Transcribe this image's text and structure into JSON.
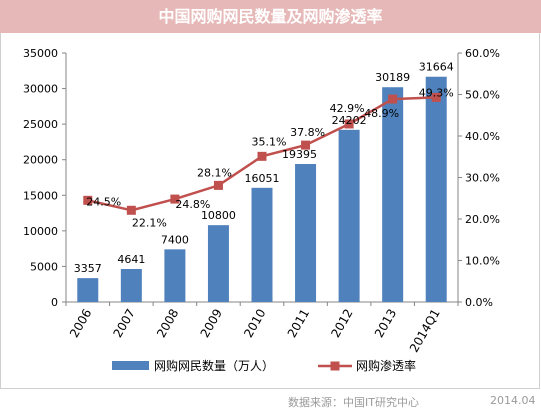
{
  "title": "中国网购网民数量及网购渗透率",
  "source": "数据来源：中国IT研究中心",
  "date": "2014.04",
  "colors": {
    "title_bg": "#e6b9b8",
    "bar": "#4f81bd",
    "line": "#c0504d"
  },
  "chart_data": {
    "type": "bar",
    "categories": [
      "2006",
      "2007",
      "2008",
      "2009",
      "2010",
      "2011",
      "2012",
      "2013",
      "2014Q1"
    ],
    "series": [
      {
        "name": "网购网民数量（万人）",
        "type": "bar",
        "axis": "left",
        "values": [
          3357,
          4641,
          7400,
          10800,
          16051,
          19395,
          24202,
          30189,
          31664
        ],
        "labels": [
          "3357",
          "4641",
          "7400",
          "10800",
          "16051",
          "19395",
          "24202",
          "30189",
          "31664"
        ]
      },
      {
        "name": "网购渗透率",
        "type": "line",
        "axis": "right",
        "values": [
          24.5,
          22.1,
          24.8,
          28.1,
          35.1,
          37.8,
          42.9,
          48.9,
          49.3
        ],
        "labels": [
          "24.5%",
          "22.1%",
          "24.8%",
          "28.1%",
          "35.1%",
          "37.8%",
          "42.9%",
          "48.9%",
          "49.3%"
        ]
      }
    ],
    "y_left": {
      "min": 0,
      "max": 35000,
      "ticks": [
        "0",
        "5000",
        "10000",
        "15000",
        "20000",
        "25000",
        "30000",
        "35000"
      ]
    },
    "y_right": {
      "min": 0,
      "max": 60,
      "ticks": [
        "0.0%",
        "10.0%",
        "20.0%",
        "30.0%",
        "40.0%",
        "50.0%",
        "60.0%"
      ]
    },
    "grid": false,
    "legend": "bottom"
  }
}
